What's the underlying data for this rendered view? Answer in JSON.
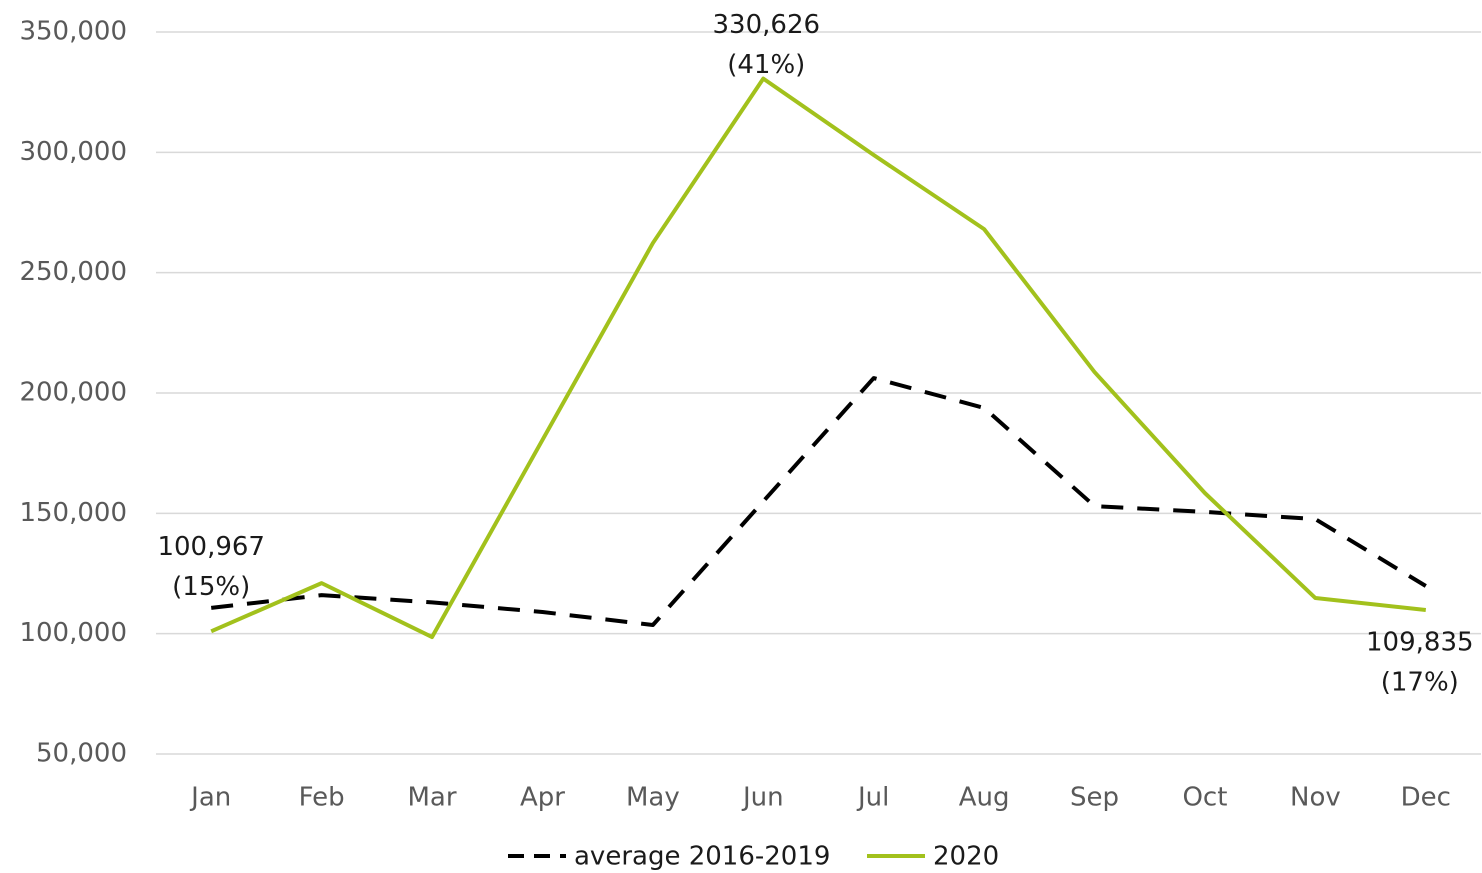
{
  "chart_data": {
    "type": "line",
    "categories": [
      "Jan",
      "Feb",
      "Mar",
      "Apr",
      "May",
      "Jun",
      "Jul",
      "Aug",
      "Sep",
      "Oct",
      "Nov",
      "Dec"
    ],
    "series": [
      {
        "name": "average 2016-2019",
        "color": "#000000",
        "dash": true,
        "values": [
          110700,
          116000,
          113000,
          109000,
          103600,
          155000,
          206200,
          193800,
          153000,
          150600,
          147600,
          119800
        ]
      },
      {
        "name": "2020",
        "color": "#a2c11c",
        "dash": false,
        "values": [
          100967,
          121000,
          98600,
          180500,
          262300,
          330626,
          298900,
          268100,
          208700,
          158400,
          114800,
          109835
        ],
        "value_labels": [
          "100,967",
          null,
          null,
          null,
          null,
          "330,626",
          null,
          null,
          null,
          null,
          null,
          "109,835"
        ],
        "share_labels": [
          "(15%)",
          null,
          null,
          null,
          null,
          "(41%)",
          null,
          null,
          null,
          null,
          null,
          "(17%)"
        ]
      }
    ],
    "ylim": [
      50000,
      350000
    ],
    "yticks": [
      {
        "value": 50000,
        "label": "50,000"
      },
      {
        "value": 100000,
        "label": "100,000"
      },
      {
        "value": 150000,
        "label": "150,000"
      },
      {
        "value": 200000,
        "label": "200,000"
      },
      {
        "value": 250000,
        "label": "250,000"
      },
      {
        "value": 300000,
        "label": "300,000"
      },
      {
        "value": 350000,
        "label": "350,000"
      }
    ],
    "grid": true,
    "legend": "bottom"
  }
}
